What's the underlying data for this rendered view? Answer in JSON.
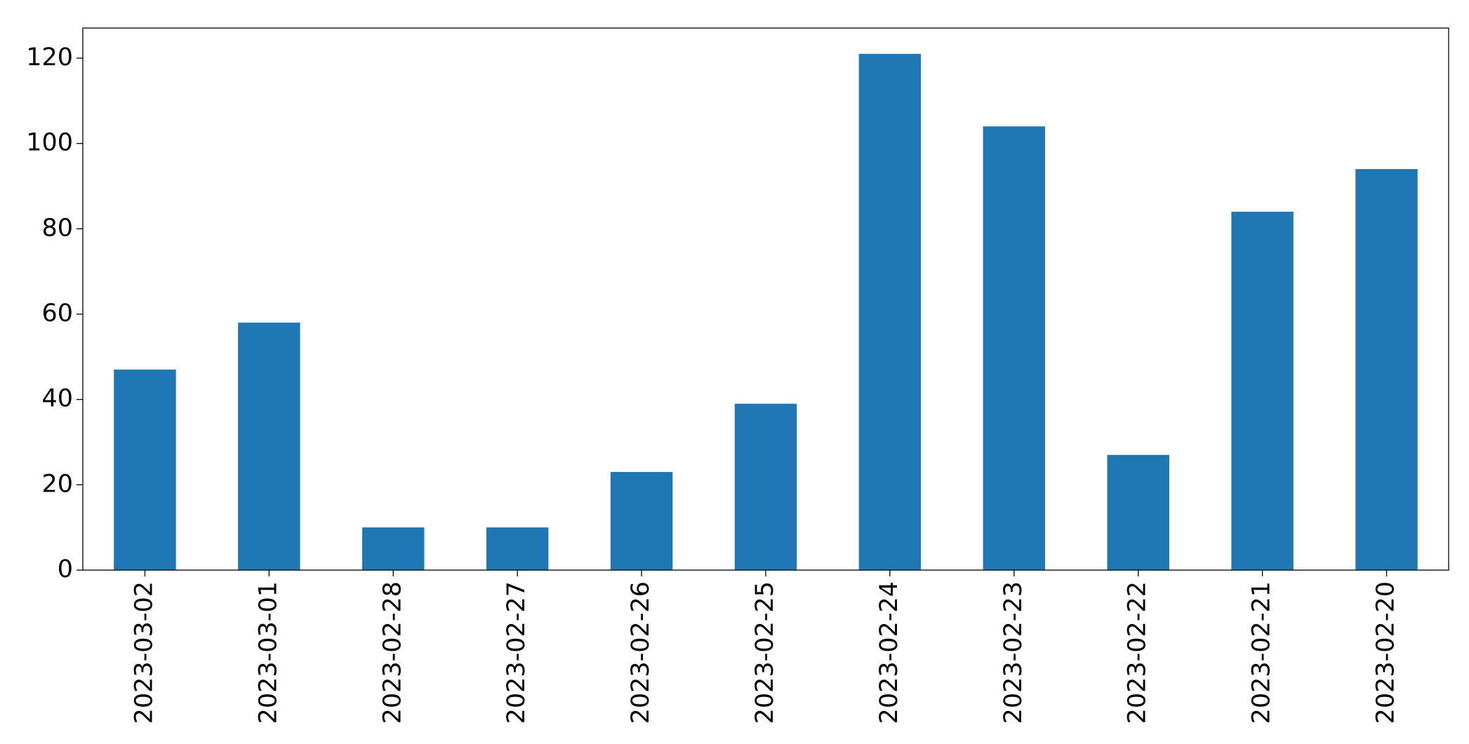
{
  "chart_data": {
    "type": "bar",
    "categories": [
      "2023-03-02",
      "2023-03-01",
      "2023-02-28",
      "2023-02-27",
      "2023-02-26",
      "2023-02-25",
      "2023-02-24",
      "2023-02-23",
      "2023-02-22",
      "2023-02-21",
      "2023-02-20"
    ],
    "values": [
      47,
      58,
      10,
      10,
      23,
      39,
      121,
      104,
      27,
      84,
      94
    ],
    "color": "#1f77b4",
    "ylim": [
      0,
      127.05
    ],
    "yticks": [
      0,
      20,
      40,
      60,
      80,
      100,
      120
    ],
    "grid": false
  }
}
